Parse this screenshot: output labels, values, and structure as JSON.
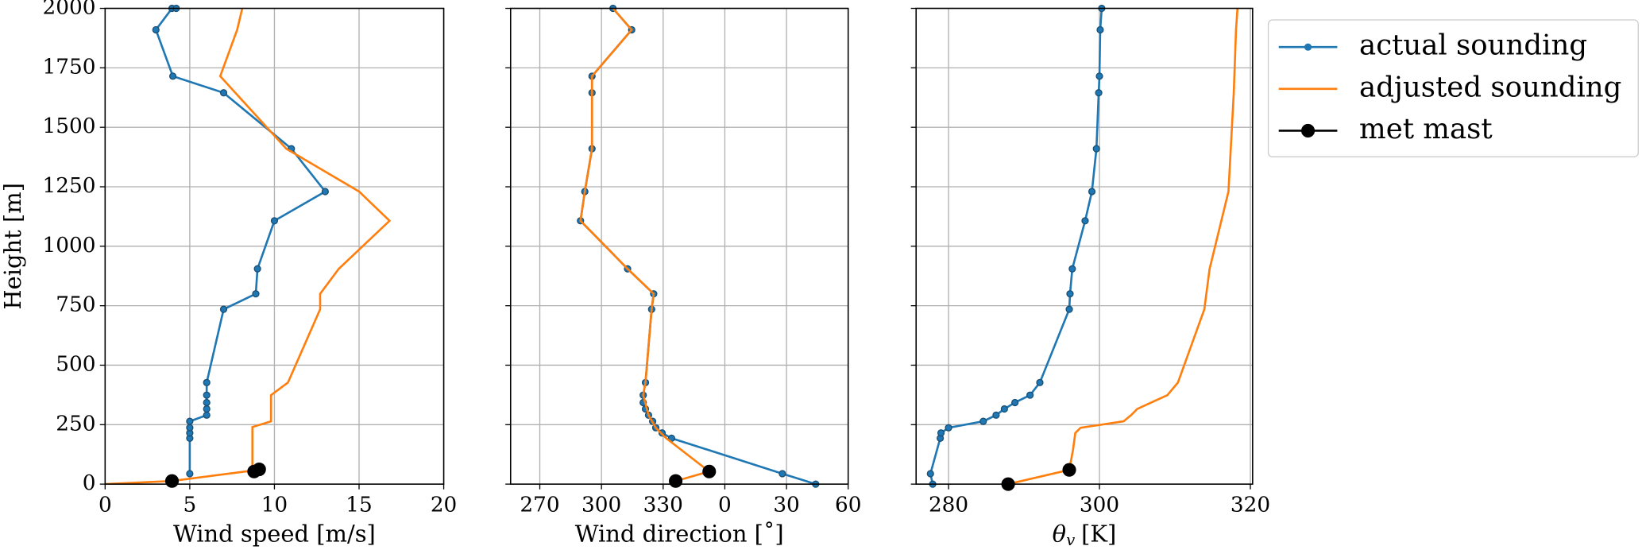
{
  "chart_data": [
    {
      "type": "line",
      "ylabel": "Height [m]",
      "xlabel": "Wind speed [m/s]",
      "xlim": [
        0,
        20
      ],
      "xticks": [
        0,
        5,
        10,
        15,
        20
      ],
      "ylim": [
        0,
        2000
      ],
      "yticks": [
        0,
        250,
        500,
        750,
        1000,
        1250,
        1500,
        1750,
        2000
      ],
      "grid": true,
      "legend": "outside upper right",
      "series": [
        {
          "name": "actual sounding",
          "color": "#1f77b4",
          "marker": "dot",
          "x": [
            5.0,
            5.0,
            5.0,
            5.0,
            5.0,
            6.0,
            6.0,
            6.0,
            6.0,
            6.0,
            7.0,
            8.9,
            9.0,
            10.0,
            13.0,
            11.0,
            7.0,
            4.0,
            3.0,
            3.95,
            4.2
          ],
          "y": [
            44,
            193,
            215,
            237,
            264,
            290,
            316,
            343,
            374,
            427,
            735,
            800,
            905,
            1107,
            1230,
            1410,
            1645,
            1715,
            1910,
            2000,
            2000
          ]
        },
        {
          "name": "adjusted sounding",
          "color": "#ff7f0e",
          "marker": "none",
          "x": [
            0,
            3.95,
            8.7,
            8.7,
            9.8,
            9.8,
            10.8,
            12.7,
            12.7,
            13.8,
            16.8,
            15.0,
            10.7,
            6.8,
            7.8,
            8.1
          ],
          "y": [
            0,
            13,
            57,
            240,
            264,
            374,
            427,
            735,
            800,
            905,
            1107,
            1230,
            1410,
            1715,
            1910,
            2000
          ]
        },
        {
          "name": "met mast",
          "color": "#000000",
          "marker": "big",
          "x": [
            3.95,
            8.8,
            9.1
          ],
          "y": [
            13,
            53,
            62
          ]
        }
      ]
    },
    {
      "type": "line",
      "xlabel": "Wind direction [˚]",
      "xlim": [
        255.8,
        420
      ],
      "xticks": [
        270,
        300,
        330,
        {
          "value": 360,
          "label": "0"
        },
        {
          "value": 390,
          "label": "30"
        },
        {
          "value": 420,
          "label": "60"
        }
      ],
      "ylim": [
        0,
        2000
      ],
      "grid": true,
      "series": [
        {
          "color": "#1f77b4",
          "marker": "dot",
          "x": [
            404.2,
            388.0,
            334.1,
            329.5,
            326.4,
            324.9,
            322.9,
            321.4,
            320.3,
            320.3,
            321.4,
            324.4,
            325.4,
            312.7,
            289.8,
            291.9,
            295.4,
            295.4,
            295.4,
            314.7,
            305.6
          ],
          "y": [
            0,
            44,
            193,
            215,
            237,
            264,
            290,
            316,
            343,
            374,
            427,
            735,
            800,
            905,
            1107,
            1230,
            1410,
            1645,
            1715,
            1910,
            2000
          ]
        },
        {
          "color": "#ff7f0e",
          "marker": "none",
          "x": [
            336.1,
            352.4,
            331.5,
            326.4,
            322.9,
            320.3,
            321.4,
            324.4,
            325.4,
            312.7,
            289.8,
            291.9,
            295.4,
            295.4,
            314.7,
            305.6
          ],
          "y": [
            13,
            53,
            193,
            237,
            290,
            374,
            427,
            735,
            800,
            905,
            1107,
            1230,
            1410,
            1715,
            1910,
            2000
          ]
        },
        {
          "color": "#000000",
          "marker": "big",
          "x": [
            336.1,
            352.4
          ],
          "y": [
            13,
            53
          ]
        }
      ]
    },
    {
      "type": "line",
      "xlabel_symbol": "θ",
      "xlabel_subscript": "v",
      "xlabel_unit": "[K]",
      "xlim": [
        275.7,
        320.3
      ],
      "xticks": [
        280,
        300,
        320
      ],
      "ylim": [
        0,
        2000
      ],
      "grid": true,
      "series": [
        {
          "color": "#1f77b4",
          "marker": "dot",
          "x": [
            277.9,
            277.6,
            278.9,
            279.0,
            280.0,
            284.6,
            286.3,
            287.4,
            288.8,
            290.8,
            292.1,
            296.0,
            296.1,
            296.4,
            298.1,
            299.0,
            299.6,
            299.9,
            300.0,
            300.1,
            300.3
          ],
          "y": [
            0,
            44,
            193,
            215,
            237,
            264,
            290,
            316,
            343,
            374,
            427,
            735,
            800,
            905,
            1107,
            1230,
            1410,
            1645,
            1715,
            1910,
            2000
          ]
        },
        {
          "color": "#ff7f0e",
          "marker": "none",
          "x": [
            287.9,
            296.0,
            296.5,
            296.8,
            297.5,
            303.2,
            304.2,
            305.0,
            309.0,
            310.4,
            313.9,
            314.6,
            317.1,
            317.8,
            318.1,
            318.3
          ],
          "y": [
            0,
            60,
            145,
            215,
            237,
            264,
            290,
            316,
            374,
            427,
            735,
            905,
            1230,
            1645,
            1910,
            2000
          ]
        },
        {
          "color": "#000000",
          "marker": "big",
          "x": [
            287.9,
            296.0
          ],
          "y": [
            0,
            60
          ]
        }
      ]
    }
  ]
}
